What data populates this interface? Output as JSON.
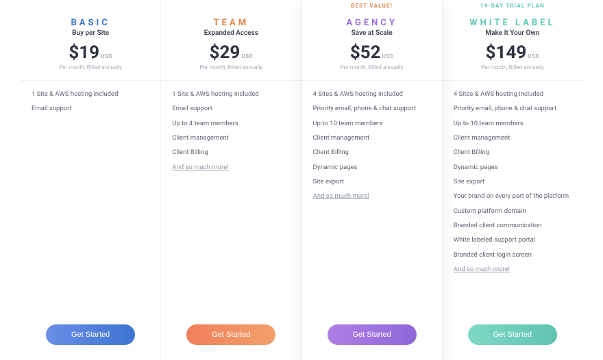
{
  "common": {
    "currency_symbol": "$",
    "currency_unit": "USD",
    "billing_cycle": "Per month, Billed annually",
    "cta_label": "Get Started",
    "more_label": "And so much more!"
  },
  "plans": [
    {
      "badge": "",
      "badge_color": "#ffffff",
      "name": "BASIC",
      "name_color": "#3b74d1",
      "tagline": "Buy per Site",
      "price": "19",
      "features": [
        "1 Site & AWS hosting included",
        "Email support"
      ],
      "show_more": false,
      "cta_gradient_from": "#6a8ee6",
      "cta_gradient_to": "#3b74d1",
      "featured": false
    },
    {
      "badge": "",
      "badge_color": "#ffffff",
      "name": "TEAM",
      "name_color": "#e5854a",
      "tagline": "Expanded Access",
      "price": "29",
      "features": [
        "1 Site & AWS hosting included",
        "Email support",
        "Up to 4 team members",
        "Client management",
        "Client Billing"
      ],
      "show_more": true,
      "cta_gradient_from": "#f07f5a",
      "cta_gradient_to": "#f2a06b",
      "featured": false
    },
    {
      "badge": "BEST VALUE!",
      "badge_color": "#e5854a",
      "name": "AGENCY",
      "name_color": "#9d6fd6",
      "tagline": "Save at Scale",
      "price": "52",
      "features": [
        "4 Sites & AWS hosting included",
        "Priority email, phone & chat support",
        "Up to 10 team members",
        "Client management",
        "Client Billing",
        "Dynamic pages",
        "Site export"
      ],
      "show_more": true,
      "cta_gradient_from": "#b07fe6",
      "cta_gradient_to": "#8d68d9",
      "featured": true
    },
    {
      "badge": "14-DAY TRIAL PLAN",
      "badge_color": "#5fc9b6",
      "name": "WHITE LABEL",
      "name_color": "#5fc9b6",
      "tagline": "Make It Your Own",
      "price": "149",
      "features": [
        "4 Sites & AWS hosting included",
        "Priority email, phone & chat support",
        "Up to 10 team members",
        "Client management",
        "Client Billing",
        "Dynamic pages",
        "Site export",
        "Your brand on every part of the platform",
        "Custom platform domain",
        "Branded client communication",
        "White labeled support portal",
        "Branded client login screen"
      ],
      "show_more": true,
      "cta_gradient_from": "#7fd8c6",
      "cta_gradient_to": "#5fc3b0",
      "featured": false
    }
  ]
}
